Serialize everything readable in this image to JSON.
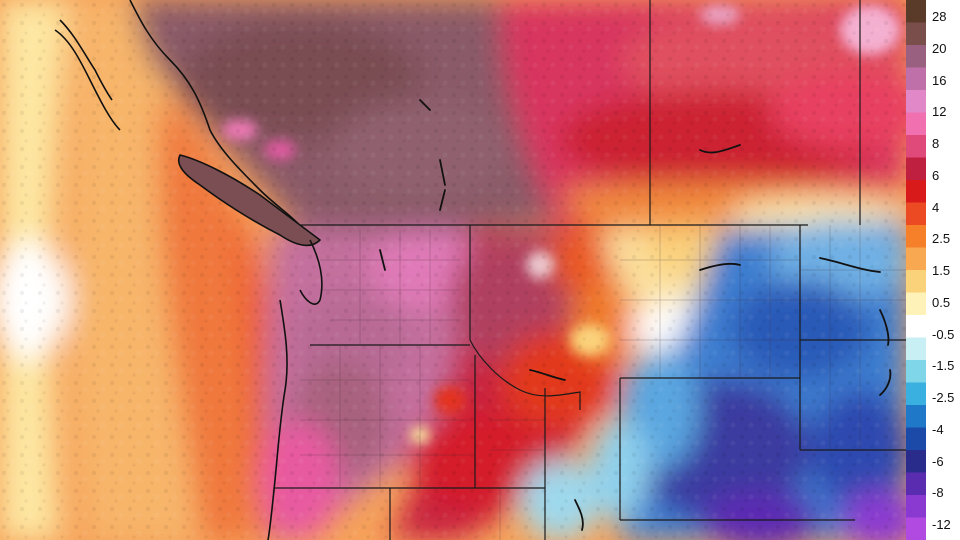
{
  "map": {
    "region_features": [
      "pacific-ocean",
      "vancouver-island",
      "puget-sound",
      "coastline",
      "state-borders",
      "county-borders",
      "lakes"
    ]
  },
  "legend": {
    "tick_labels": [
      "28",
      "20",
      "16",
      "12",
      "8",
      "6",
      "4",
      "2.5",
      "1.5",
      "0.5",
      "-0.5",
      "-1.5",
      "-2.5",
      "-4",
      "-6",
      "-8",
      "-12"
    ],
    "colors": [
      "#5a3a28",
      "#7a4e4a",
      "#9a6080",
      "#c070a8",
      "#e088c8",
      "#f070b0",
      "#e04a7a",
      "#c02040",
      "#d81a1a",
      "#ec4a22",
      "#f6802a",
      "#f8a850",
      "#fad27a",
      "#fff2b8",
      "#ffffff",
      "#c8f0f4",
      "#7ed6e8",
      "#3ab0e0",
      "#1f78c8",
      "#1c4aa8",
      "#2a2c8c",
      "#5a2cb0",
      "#8a3ad0",
      "#b04ae0"
    ]
  }
}
